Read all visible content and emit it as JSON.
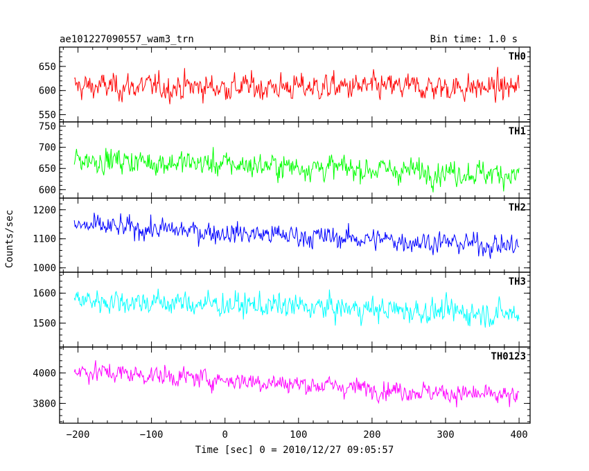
{
  "header": {
    "title": "ae101227090557_wam3_trn",
    "bin_time": "Bin time: 1.0 s"
  },
  "axes": {
    "ylabel": "Counts/sec",
    "xlabel": "Time [sec] 0 = 2010/12/27 09:05:57"
  },
  "chart_data": {
    "type": "line",
    "x_range": [
      -205,
      400
    ],
    "xlim": [
      -225,
      415
    ],
    "x_ticks": [
      -200,
      -100,
      0,
      100,
      200,
      300,
      400
    ],
    "x_tick_labels": [
      "−200",
      "−100",
      "0",
      "100",
      "200",
      "300",
      "400"
    ],
    "bin_time": 1.0,
    "panels": [
      {
        "name": "TH0",
        "color": "#ff0000",
        "ylim": [
          535,
          690
        ],
        "yticks": [
          550,
          600,
          650
        ],
        "trend": [
          608,
          606
        ],
        "noise": 28,
        "show_min_tick": true
      },
      {
        "name": "TH1",
        "color": "#00ff00",
        "ylim": [
          580,
          760
        ],
        "yticks": [
          600,
          650,
          700,
          750
        ],
        "trend": [
          672,
          636
        ],
        "noise": 30,
        "show_min_tick": true
      },
      {
        "name": "TH2",
        "color": "#0000ff",
        "ylim": [
          985,
          1240
        ],
        "yticks": [
          1000,
          1100,
          1200
        ],
        "trend": [
          1145,
          1075
        ],
        "noise": 38,
        "show_min_tick": true
      },
      {
        "name": "TH3",
        "color": "#00ffff",
        "ylim": [
          1420,
          1670
        ],
        "yticks": [
          1500,
          1600
        ],
        "trend": [
          1578,
          1530
        ],
        "noise": 42,
        "show_min_tick": false
      },
      {
        "name": "TH0123",
        "color": "#ff00ff",
        "ylim": [
          3670,
          4170
        ],
        "yticks": [
          3800,
          4000
        ],
        "trend": [
          4015,
          3840
        ],
        "noise": 65,
        "show_min_tick": false
      }
    ]
  }
}
